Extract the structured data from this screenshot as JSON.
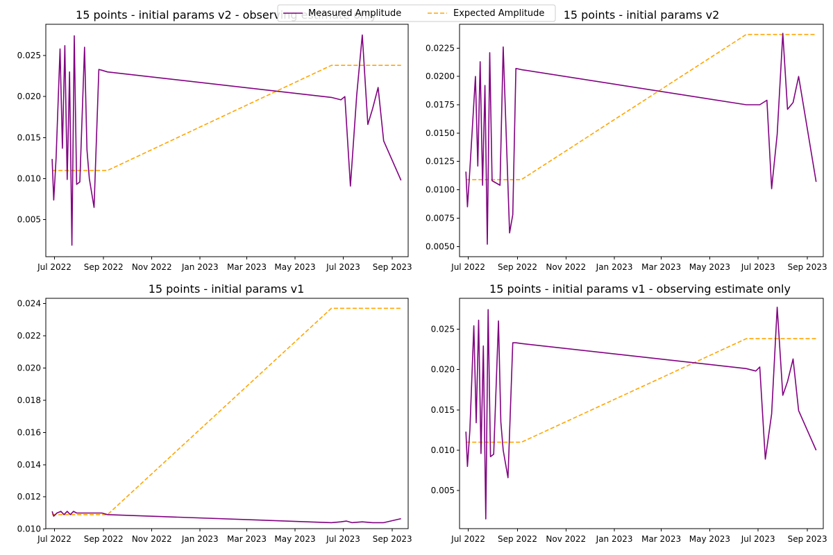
{
  "figure": {
    "legend": {
      "placement": "top-center",
      "entries": [
        {
          "label": "Measured Amplitude",
          "color": "#800080",
          "style": "solid"
        },
        {
          "label": "Expected Amplitude",
          "color": "#FFA500",
          "style": "dashed"
        }
      ]
    }
  },
  "chart_data": [
    {
      "type": "line",
      "title": "15 points - initial params v2 - observing estimate only",
      "xlabel": "",
      "ylabel": "",
      "grid": false,
      "x_ticks": [
        "2022-07-01",
        "2022-09-01",
        "2022-11-01",
        "2023-01-01",
        "2023-03-01",
        "2023-05-01",
        "2023-07-01",
        "2023-09-01"
      ],
      "x_tick_labels": [
        "Jul 2022",
        "Sep 2022",
        "Nov 2022",
        "Jan 2023",
        "Mar 2023",
        "May 2023",
        "Jul 2023",
        "Sep 2023"
      ],
      "xlim": [
        "2022-06-20",
        "2023-09-21"
      ],
      "ylim": [
        0.0005,
        0.0288
      ],
      "y_ticks": [
        0.005,
        0.01,
        0.015,
        0.02,
        0.025
      ],
      "y_tick_labels": [
        "0.005",
        "0.010",
        "0.015",
        "0.020",
        "0.025"
      ],
      "series": [
        {
          "name": "Measured Amplitude",
          "color": "#800080",
          "style": "solid",
          "x": [
            "2022-06-28",
            "2022-06-30",
            "2022-07-03",
            "2022-07-08",
            "2022-07-11",
            "2022-07-14",
            "2022-07-17",
            "2022-07-20",
            "2022-07-23",
            "2022-07-26",
            "2022-07-29",
            "2022-08-02",
            "2022-08-08",
            "2022-08-11",
            "2022-08-14",
            "2022-08-20",
            "2022-08-26",
            "2022-08-30",
            "2022-09-06",
            "2023-06-16",
            "2023-06-28",
            "2023-07-03",
            "2023-07-10",
            "2023-07-18",
            "2023-07-25",
            "2023-08-01",
            "2023-08-07",
            "2023-08-14",
            "2023-08-21",
            "2023-09-12"
          ],
          "y": [
            0.0124,
            0.0074,
            0.0125,
            0.0258,
            0.0137,
            0.0262,
            0.0099,
            0.023,
            0.0019,
            0.0274,
            0.0093,
            0.0096,
            0.026,
            0.0135,
            0.01,
            0.0065,
            0.0233,
            0.0232,
            0.023,
            0.0199,
            0.0196,
            0.02,
            0.0091,
            0.0202,
            0.0275,
            0.0166,
            0.0185,
            0.0211,
            0.0146,
            0.0098
          ]
        },
        {
          "name": "Expected Amplitude",
          "color": "#FFA500",
          "style": "dashed",
          "x": [
            "2022-06-28",
            "2022-09-06",
            "2023-06-16",
            "2023-09-12"
          ],
          "y": [
            0.011,
            0.011,
            0.0238,
            0.0238
          ]
        }
      ]
    },
    {
      "type": "line",
      "title": "15 points - initial params v2",
      "xlabel": "",
      "ylabel": "",
      "grid": false,
      "x_ticks": [
        "2022-07-01",
        "2022-09-01",
        "2022-11-01",
        "2023-01-01",
        "2023-03-01",
        "2023-05-01",
        "2023-07-01",
        "2023-09-01"
      ],
      "x_tick_labels": [
        "Jul 2022",
        "Sep 2022",
        "Nov 2022",
        "Jan 2023",
        "Mar 2023",
        "May 2023",
        "Jul 2023",
        "Sep 2023"
      ],
      "xlim": [
        "2022-06-20",
        "2023-09-21"
      ],
      "ylim": [
        0.0041,
        0.0246
      ],
      "y_ticks": [
        0.005,
        0.0075,
        0.01,
        0.0125,
        0.015,
        0.0175,
        0.02,
        0.0225
      ],
      "y_tick_labels": [
        "0.0050",
        "0.0075",
        "0.0100",
        "0.0125",
        "0.0150",
        "0.0175",
        "0.0200",
        "0.0225"
      ],
      "series": [
        {
          "name": "Measured Amplitude",
          "color": "#800080",
          "style": "solid",
          "x": [
            "2022-06-28",
            "2022-06-30",
            "2022-07-03",
            "2022-07-10",
            "2022-07-13",
            "2022-07-16",
            "2022-07-19",
            "2022-07-22",
            "2022-07-25",
            "2022-07-28",
            "2022-07-31",
            "2022-08-10",
            "2022-08-14",
            "2022-08-22",
            "2022-08-26",
            "2022-08-30",
            "2022-09-06",
            "2023-06-16",
            "2023-06-28",
            "2023-07-03",
            "2023-07-12",
            "2023-07-18",
            "2023-07-25",
            "2023-08-01",
            "2023-08-07",
            "2023-08-14",
            "2023-08-21",
            "2023-09-12"
          ],
          "y": [
            0.0116,
            0.0085,
            0.0118,
            0.02,
            0.0121,
            0.0213,
            0.0104,
            0.0192,
            0.0052,
            0.0221,
            0.0108,
            0.0104,
            0.0226,
            0.0062,
            0.0078,
            0.0207,
            0.0206,
            0.0175,
            0.0175,
            0.0175,
            0.0179,
            0.0101,
            0.0149,
            0.0238,
            0.0171,
            0.0177,
            0.02,
            0.0107
          ]
        },
        {
          "name": "Expected Amplitude",
          "color": "#FFA500",
          "style": "dashed",
          "x": [
            "2022-06-28",
            "2022-09-06",
            "2023-06-16",
            "2023-09-12"
          ],
          "y": [
            0.0109,
            0.0109,
            0.0237,
            0.0237
          ]
        }
      ]
    },
    {
      "type": "line",
      "title": "15 points - initial params v1",
      "xlabel": "",
      "ylabel": "",
      "grid": false,
      "x_ticks": [
        "2022-07-01",
        "2022-09-01",
        "2022-11-01",
        "2023-01-01",
        "2023-03-01",
        "2023-05-01",
        "2023-07-01",
        "2023-09-01"
      ],
      "x_tick_labels": [
        "Jul 2022",
        "Sep 2022",
        "Nov 2022",
        "Jan 2023",
        "Mar 2023",
        "May 2023",
        "Jul 2023",
        "Sep 2023"
      ],
      "xlim": [
        "2022-06-20",
        "2023-09-21"
      ],
      "ylim": [
        0.01003,
        0.02432
      ],
      "y_ticks": [
        0.01,
        0.012,
        0.014,
        0.016,
        0.018,
        0.02,
        0.022,
        0.024
      ],
      "y_tick_labels": [
        "0.010",
        "0.012",
        "0.014",
        "0.016",
        "0.018",
        "0.020",
        "0.022",
        "0.024"
      ],
      "series": [
        {
          "name": "Measured Amplitude",
          "color": "#800080",
          "style": "solid",
          "x": [
            "2022-06-28",
            "2022-06-30",
            "2022-07-04",
            "2022-07-09",
            "2022-07-13",
            "2022-07-17",
            "2022-07-21",
            "2022-07-25",
            "2022-07-29",
            "2022-08-06",
            "2022-08-14",
            "2022-08-22",
            "2022-08-30",
            "2022-09-06",
            "2023-06-16",
            "2023-06-28",
            "2023-07-05",
            "2023-07-12",
            "2023-07-25",
            "2023-08-07",
            "2023-08-21",
            "2023-09-12"
          ],
          "y": [
            0.0111,
            0.0108,
            0.011,
            0.0111,
            0.0109,
            0.0111,
            0.0109,
            0.0111,
            0.011,
            0.011,
            0.011,
            0.011,
            0.011,
            0.0109,
            0.0104,
            0.01045,
            0.0105,
            0.0104,
            0.01045,
            0.0104,
            0.0104,
            0.01065
          ]
        },
        {
          "name": "Expected Amplitude",
          "color": "#FFA500",
          "style": "dashed",
          "x": [
            "2022-06-28",
            "2022-09-06",
            "2023-06-16",
            "2023-09-12"
          ],
          "y": [
            0.0109,
            0.0109,
            0.0237,
            0.0237
          ]
        }
      ]
    },
    {
      "type": "line",
      "title": "15 points - initial params v1 - observing estimate only",
      "xlabel": "",
      "ylabel": "",
      "grid": false,
      "x_ticks": [
        "2022-07-01",
        "2022-09-01",
        "2022-11-01",
        "2023-01-01",
        "2023-03-01",
        "2023-05-01",
        "2023-07-01",
        "2023-09-01"
      ],
      "x_tick_labels": [
        "Jul 2022",
        "Sep 2022",
        "Nov 2022",
        "Jan 2023",
        "Mar 2023",
        "May 2023",
        "Jul 2023",
        "Sep 2023"
      ],
      "xlim": [
        "2022-06-20",
        "2023-09-21"
      ],
      "ylim": [
        0.0003,
        0.0288
      ],
      "y_ticks": [
        0.005,
        0.01,
        0.015,
        0.02,
        0.025
      ],
      "y_tick_labels": [
        "0.005",
        "0.010",
        "0.015",
        "0.020",
        "0.025"
      ],
      "series": [
        {
          "name": "Measured Amplitude",
          "color": "#800080",
          "style": "solid",
          "x": [
            "2022-06-28",
            "2022-06-30",
            "2022-07-03",
            "2022-07-08",
            "2022-07-11",
            "2022-07-14",
            "2022-07-17",
            "2022-07-20",
            "2022-07-23",
            "2022-07-26",
            "2022-07-29",
            "2022-08-02",
            "2022-08-08",
            "2022-08-11",
            "2022-08-14",
            "2022-08-20",
            "2022-08-26",
            "2022-08-30",
            "2022-09-06",
            "2023-06-16",
            "2023-06-28",
            "2023-07-03",
            "2023-07-10",
            "2023-07-18",
            "2023-07-25",
            "2023-08-01",
            "2023-08-07",
            "2023-08-14",
            "2023-08-21",
            "2023-09-12"
          ],
          "y": [
            0.0123,
            0.008,
            0.0125,
            0.0254,
            0.0134,
            0.0261,
            0.0096,
            0.0229,
            0.0015,
            0.0274,
            0.0092,
            0.0095,
            0.026,
            0.0135,
            0.01,
            0.0066,
            0.0233,
            0.0233,
            0.0232,
            0.0201,
            0.0198,
            0.0203,
            0.0089,
            0.0145,
            0.0277,
            0.0168,
            0.0185,
            0.0213,
            0.0149,
            0.01
          ]
        },
        {
          "name": "Expected Amplitude",
          "color": "#FFA500",
          "style": "dashed",
          "x": [
            "2022-06-28",
            "2022-09-06",
            "2023-06-16",
            "2023-09-12"
          ],
          "y": [
            0.011,
            0.011,
            0.0238,
            0.0238
          ]
        }
      ]
    }
  ]
}
